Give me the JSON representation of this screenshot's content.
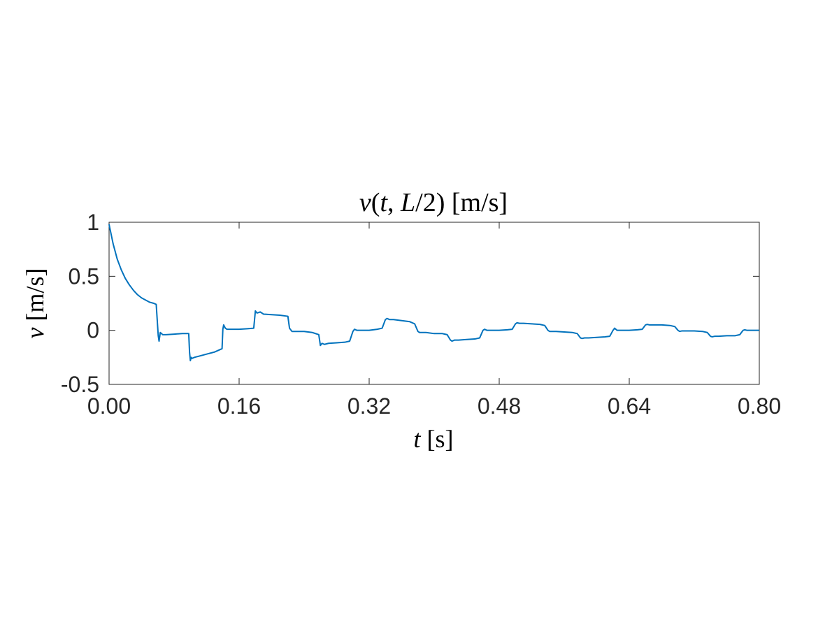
{
  "chart_data": {
    "type": "line",
    "title": {
      "italic": "v",
      "plain": "(",
      "italic2": "t",
      "plain2": ", ",
      "italic3": "L",
      "plain3": "/2)  [m/s]"
    },
    "xlabel": {
      "italic": "t",
      "plain": " [s]"
    },
    "ylabel": {
      "italic": "v",
      "plain": " [m/s]"
    },
    "xlim": [
      0,
      0.8
    ],
    "ylim": [
      -0.5,
      1
    ],
    "x_ticks": [
      0,
      0.16,
      0.32,
      0.48,
      0.64,
      0.8
    ],
    "x_tick_labels": [
      "0.00",
      "0.16",
      "0.32",
      "0.48",
      "0.64",
      "0.80"
    ],
    "y_ticks": [
      -0.5,
      0,
      0.5,
      1
    ],
    "y_tick_labels": [
      "-0.5",
      "0",
      "0.5",
      "1"
    ],
    "grid": false,
    "line_color": "#0072BD",
    "series": [
      {
        "x": [
          0,
          0.005,
          0.01,
          0.015,
          0.02,
          0.025,
          0.03,
          0.035,
          0.04,
          0.045,
          0.05,
          0.055,
          0.058,
          0.0605,
          0.0615,
          0.063,
          0.066,
          0.07,
          0.08,
          0.09,
          0.098,
          0.099,
          0.1,
          0.101,
          0.102,
          0.105,
          0.11,
          0.12,
          0.13,
          0.139,
          0.14,
          0.141,
          0.143,
          0.145,
          0.15,
          0.16,
          0.17,
          0.178,
          0.18,
          0.182,
          0.186,
          0.19,
          0.2,
          0.21,
          0.22,
          0.222,
          0.225,
          0.23,
          0.24,
          0.25,
          0.258,
          0.26,
          0.262,
          0.265,
          0.27,
          0.28,
          0.29,
          0.296,
          0.3,
          0.302,
          0.305,
          0.31,
          0.32,
          0.33,
          0.336,
          0.34,
          0.342,
          0.345,
          0.35,
          0.36,
          0.37,
          0.376,
          0.38,
          0.382,
          0.385,
          0.39,
          0.4,
          0.41,
          0.416,
          0.42,
          0.422,
          0.425,
          0.43,
          0.44,
          0.45,
          0.456,
          0.46,
          0.462,
          0.465,
          0.47,
          0.48,
          0.49,
          0.496,
          0.5,
          0.502,
          0.505,
          0.51,
          0.52,
          0.53,
          0.536,
          0.54,
          0.542,
          0.545,
          0.55,
          0.56,
          0.57,
          0.576,
          0.58,
          0.582,
          0.585,
          0.59,
          0.6,
          0.61,
          0.616,
          0.62,
          0.622,
          0.625,
          0.63,
          0.64,
          0.65,
          0.656,
          0.66,
          0.662,
          0.665,
          0.67,
          0.68,
          0.69,
          0.696,
          0.7,
          0.702,
          0.705,
          0.71,
          0.72,
          0.73,
          0.736,
          0.74,
          0.742,
          0.745,
          0.75,
          0.76,
          0.77,
          0.776,
          0.78,
          0.782,
          0.785,
          0.79,
          0.8
        ],
        "y": [
          0.98,
          0.8,
          0.66,
          0.56,
          0.48,
          0.42,
          0.37,
          0.33,
          0.3,
          0.28,
          0.26,
          0.25,
          0.24,
          -0.05,
          -0.1,
          -0.02,
          -0.04,
          -0.04,
          -0.035,
          -0.03,
          -0.03,
          -0.2,
          -0.28,
          -0.25,
          -0.26,
          -0.25,
          -0.24,
          -0.22,
          -0.2,
          -0.17,
          0.01,
          0.05,
          0.02,
          0.01,
          0.01,
          0.01,
          0.015,
          0.02,
          0.18,
          0.16,
          0.17,
          0.15,
          0.145,
          0.14,
          0.13,
          0.02,
          -0.01,
          -0.01,
          -0.01,
          -0.02,
          -0.04,
          -0.14,
          -0.12,
          -0.13,
          -0.12,
          -0.115,
          -0.11,
          -0.1,
          -0.01,
          0.01,
          0.0,
          0.0,
          0.0,
          0.01,
          0.02,
          0.1,
          0.11,
          0.1,
          0.1,
          0.09,
          0.08,
          0.06,
          -0.01,
          -0.02,
          -0.02,
          -0.02,
          -0.03,
          -0.03,
          -0.04,
          -0.09,
          -0.1,
          -0.09,
          -0.09,
          -0.085,
          -0.08,
          -0.07,
          0.0,
          0.01,
          0.0,
          0.0,
          0.0,
          0.005,
          0.01,
          0.06,
          0.07,
          0.065,
          0.065,
          0.06,
          0.055,
          0.045,
          0.0,
          -0.01,
          -0.01,
          -0.01,
          -0.015,
          -0.02,
          -0.03,
          -0.07,
          -0.075,
          -0.07,
          -0.07,
          -0.065,
          -0.06,
          -0.055,
          0.0,
          0.02,
          0.0,
          0.0,
          0.0,
          0.005,
          0.01,
          0.05,
          0.055,
          0.05,
          0.05,
          0.05,
          0.045,
          0.035,
          0.0,
          -0.01,
          -0.005,
          -0.005,
          -0.005,
          -0.01,
          -0.02,
          -0.055,
          -0.06,
          -0.055,
          -0.055,
          -0.05,
          -0.05,
          -0.04,
          0.0,
          0.005,
          0.0,
          0.0,
          0.0
        ]
      }
    ]
  }
}
